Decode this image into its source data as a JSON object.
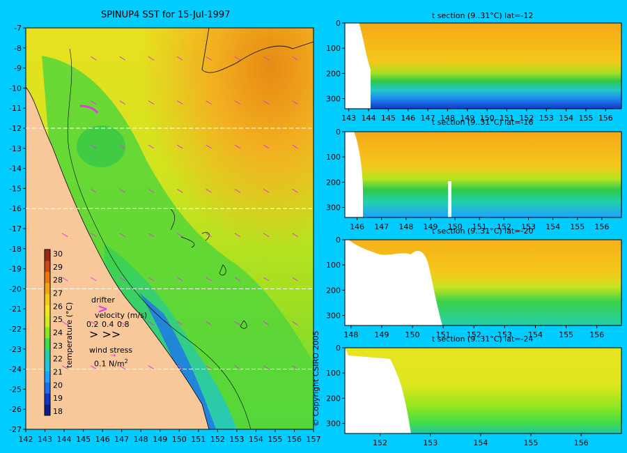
{
  "main_title": "SPINUP4 SST for 15-Jul-1997",
  "copyright": "© Copyright CSIRO 2005",
  "colorbar": {
    "label": "temperature (°C)",
    "ticks": [
      "18",
      "19",
      "20",
      "21",
      "22",
      "23",
      "24",
      "25",
      "26",
      "27",
      "28",
      "29",
      "30"
    ],
    "colors": [
      "#0a1f8a",
      "#1435c8",
      "#1e6ef0",
      "#1fa0ff",
      "#21c4e0",
      "#22d0a8",
      "#3fdc4c",
      "#8ce622",
      "#d2ea1e",
      "#f2e61c",
      "#f6c818",
      "#f2a414",
      "#ea7612",
      "#c84a10",
      "#9a2a0e"
    ]
  },
  "legend": {
    "drifter": "drifter",
    "velocity_label": "velocity (m/s)",
    "velocity_values": [
      "0.2",
      "0.4",
      "0.8"
    ],
    "wind_label": "wind stress",
    "wind_value": "0.1 N/m",
    "wind_exp": "2"
  },
  "chart_data": [
    {
      "type": "heatmap",
      "title": "SPINUP4 SST for 15-Jul-1997",
      "x_ticks": [
        "142",
        "143",
        "144",
        "145",
        "146",
        "147",
        "148",
        "149",
        "150",
        "151",
        "152",
        "153",
        "154",
        "155",
        "156",
        "157"
      ],
      "y_ticks": [
        "-7",
        "-8",
        "-9",
        "-10",
        "-11",
        "-12",
        "-13",
        "-14",
        "-15",
        "-16",
        "-17",
        "-18",
        "-19",
        "-20",
        "-21",
        "-22",
        "-23",
        "-24",
        "-25",
        "-26",
        "-27"
      ],
      "xlim": [
        142,
        157
      ],
      "ylim": [
        -27,
        -7
      ],
      "section_lats": [
        -12,
        -16,
        -20,
        -24
      ],
      "colors": {
        "land": "#F8C89A",
        "warm": "#F2B020",
        "mid": "#C8E41E",
        "cool": "#3CD24A",
        "cold": "#1E78E6"
      }
    },
    {
      "type": "heatmap",
      "title": "t section (9..31°C) lat=-12",
      "x_ticks": [
        "143",
        "144",
        "145",
        "146",
        "147",
        "148",
        "149",
        "150",
        "151",
        "152",
        "153",
        "154",
        "155",
        "156"
      ],
      "y_ticks": [
        "0",
        "100",
        "200",
        "300"
      ],
      "xlim": [
        142.8,
        156.8
      ],
      "ylim": [
        340,
        0
      ]
    },
    {
      "type": "heatmap",
      "title": "t section (9..31°C) lat=-16",
      "x_ticks": [
        "146",
        "147",
        "148",
        "149",
        "150",
        "151",
        "152",
        "153",
        "154",
        "155",
        "156"
      ],
      "y_ticks": [
        "0",
        "100",
        "200",
        "300"
      ],
      "xlim": [
        145.5,
        156.8
      ],
      "ylim": [
        340,
        0
      ]
    },
    {
      "type": "heatmap",
      "title": "t section (9..31°C) lat=-20",
      "x_ticks": [
        "148",
        "149",
        "150",
        "151",
        "152",
        "153",
        "154",
        "155",
        "156"
      ],
      "y_ticks": [
        "0",
        "100",
        "200",
        "300"
      ],
      "xlim": [
        147.8,
        156.8
      ],
      "ylim": [
        340,
        0
      ]
    },
    {
      "type": "heatmap",
      "title": "t section (9..31°C) lat=-24",
      "x_ticks": [
        "152",
        "153",
        "154",
        "155",
        "156"
      ],
      "y_ticks": [
        "0",
        "100",
        "200",
        "300"
      ],
      "xlim": [
        151.3,
        156.8
      ],
      "ylim": [
        340,
        0
      ]
    }
  ]
}
